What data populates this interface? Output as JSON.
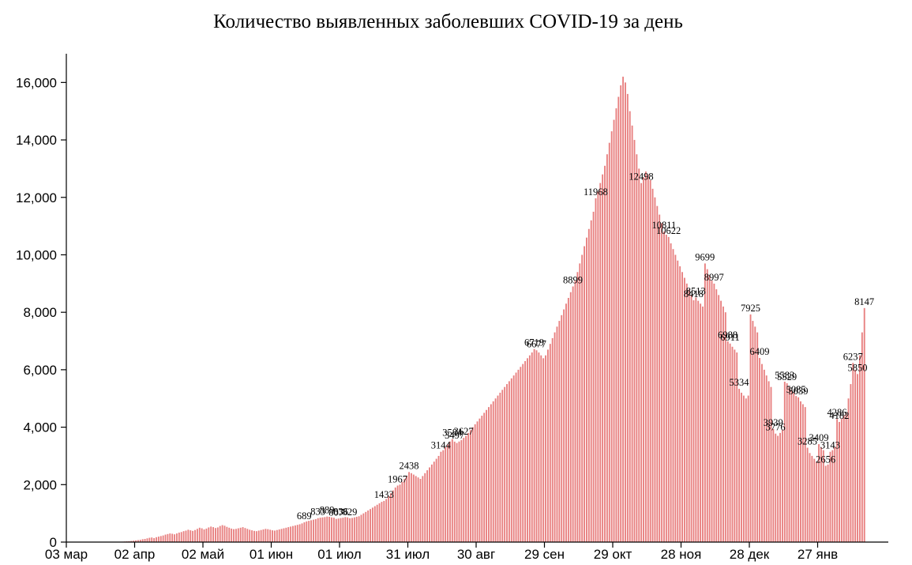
{
  "chart_data": {
    "type": "bar",
    "title": "Количество выявленных заболевших COVID-19 за день",
    "xlabel": "",
    "ylabel": "",
    "ylim": [
      0,
      17000
    ],
    "yticks": [
      0,
      2000,
      4000,
      6000,
      8000,
      10000,
      12000,
      14000,
      16000
    ],
    "ytick_labels": [
      "0",
      "2,000",
      "4,000",
      "6,000",
      "8,000",
      "10,000",
      "12,000",
      "14,000",
      "16,000"
    ],
    "x_start": "2020-03-03",
    "x_end": "2021-02-26",
    "xticks": [
      {
        "date": "2020-03-03",
        "label": "03 мар"
      },
      {
        "date": "2020-04-02",
        "label": "02 апр"
      },
      {
        "date": "2020-05-02",
        "label": "02 май"
      },
      {
        "date": "2020-06-01",
        "label": "01 июн"
      },
      {
        "date": "2020-07-01",
        "label": "01 июл"
      },
      {
        "date": "2020-07-31",
        "label": "31 июл"
      },
      {
        "date": "2020-08-30",
        "label": "30 авг"
      },
      {
        "date": "2020-09-29",
        "label": "29 сен"
      },
      {
        "date": "2020-10-29",
        "label": "29 окт"
      },
      {
        "date": "2020-11-28",
        "label": "28 ноя"
      },
      {
        "date": "2020-12-28",
        "label": "28 дек"
      },
      {
        "date": "2021-01-27",
        "label": "27 янв"
      }
    ],
    "bar_color": "#e88080",
    "series": [
      {
        "values": [
          0,
          0,
          0,
          0,
          0,
          0,
          0,
          0,
          0,
          0,
          0,
          0,
          0,
          0,
          0,
          0,
          0,
          0,
          0,
          0,
          3,
          5,
          8,
          10,
          15,
          20,
          25,
          30,
          40,
          50,
          60,
          70,
          80,
          100,
          110,
          130,
          150,
          160,
          140,
          170,
          190,
          210,
          230,
          260,
          280,
          300,
          290,
          270,
          300,
          330,
          350,
          380,
          400,
          430,
          410,
          390,
          420,
          460,
          500,
          480,
          440,
          470,
          510,
          540,
          520,
          490,
          510,
          560,
          590,
          570,
          530,
          500,
          470,
          450,
          460,
          480,
          500,
          520,
          490,
          460,
          430,
          410,
          390,
          380,
          400,
          420,
          440,
          460,
          450,
          430,
          410,
          400,
          420,
          440,
          460,
          480,
          500,
          520,
          540,
          560,
          580,
          600,
          620,
          650,
          689,
          720,
          740,
          760,
          780,
          800,
          833,
          850,
          860,
          870,
          889,
          880,
          860,
          850,
          807,
          820,
          836,
          850,
          870,
          860,
          829,
          840,
          860,
          880,
          900,
          950,
          1000,
          1050,
          1100,
          1150,
          1200,
          1250,
          1300,
          1350,
          1400,
          1433,
          1500,
          1600,
          1700,
          1800,
          1900,
          1967,
          2000,
          2100,
          2200,
          2300,
          2438,
          2400,
          2350,
          2300,
          2250,
          2200,
          2300,
          2400,
          2500,
          2600,
          2700,
          2800,
          2900,
          3000,
          3144,
          3200,
          3300,
          3400,
          3500,
          3584,
          3497,
          3450,
          3500,
          3550,
          3627,
          3700,
          3800,
          3900,
          4000,
          4100,
          4200,
          4300,
          4400,
          4500,
          4600,
          4700,
          4800,
          4900,
          5000,
          5100,
          5200,
          5300,
          5400,
          5500,
          5600,
          5700,
          5800,
          5900,
          6000,
          6100,
          6200,
          6300,
          6400,
          6500,
          6600,
          6719,
          6677,
          6600,
          6500,
          6400,
          6500,
          6700,
          6900,
          7100,
          7300,
          7500,
          7700,
          7900,
          8100,
          8300,
          8500,
          8700,
          8899,
          9100,
          9400,
          9700,
          10000,
          10300,
          10600,
          10900,
          11200,
          11500,
          11968,
          12200,
          12500,
          12800,
          13100,
          13500,
          13900,
          14300,
          14700,
          15100,
          15500,
          15900,
          16200,
          16000,
          15600,
          15000,
          14500,
          14000,
          13500,
          13000,
          12498,
          12700,
          12900,
          12800,
          12600,
          12300,
          12000,
          11700,
          11400,
          11100,
          10811,
          10700,
          10622,
          10400,
          10200,
          10000,
          9800,
          9600,
          9400,
          9200,
          9000,
          8800,
          8600,
          8418,
          8513,
          8400,
          8300,
          8200,
          9699,
          9500,
          9300,
          9100,
          8997,
          8800,
          8600,
          8400,
          8200,
          8000,
          6988,
          6911,
          6800,
          6700,
          6600,
          5334,
          5200,
          5100,
          5000,
          5100,
          7925,
          7700,
          7500,
          7300,
          6409,
          6200,
          6000,
          5800,
          5600,
          5400,
          3939,
          3776,
          3700,
          3800,
          3900,
          5583,
          5529,
          5400,
          5300,
          5200,
          5085,
          5039,
          4900,
          4800,
          4700,
          3285,
          3100,
          3000,
          2900,
          2800,
          3409,
          3300,
          3200,
          2656,
          2700,
          3143,
          3200,
          3300,
          4286,
          4182,
          4300,
          4400,
          4500,
          5000,
          5500,
          6237,
          6000,
          5850,
          6500,
          7300,
          8147
        ]
      }
    ],
    "data_labels": [
      {
        "text": "689",
        "index": 104
      },
      {
        "text": "833",
        "index": 110
      },
      {
        "text": "889",
        "index": 114
      },
      {
        "text": "807",
        "index": 118
      },
      {
        "text": "836",
        "index": 120
      },
      {
        "text": "829",
        "index": 124
      },
      {
        "text": "1433",
        "index": 139
      },
      {
        "text": "1967",
        "index": 145
      },
      {
        "text": "2438",
        "index": 150
      },
      {
        "text": "3144",
        "index": 164
      },
      {
        "text": "3584",
        "index": 169
      },
      {
        "text": "3497",
        "index": 170
      },
      {
        "text": "3627",
        "index": 174
      },
      {
        "text": "6719",
        "index": 205
      },
      {
        "text": "6677",
        "index": 206
      },
      {
        "text": "8899",
        "index": 222
      },
      {
        "text": "11968",
        "index": 232
      },
      {
        "text": "12498",
        "index": 252
      },
      {
        "text": "10811",
        "index": 262
      },
      {
        "text": "10622",
        "index": 264
      },
      {
        "text": "8418",
        "index": 275
      },
      {
        "text": "8513",
        "index": 276
      },
      {
        "text": "9699",
        "index": 280
      },
      {
        "text": "8997",
        "index": 284
      },
      {
        "text": "6988",
        "index": 290
      },
      {
        "text": "6911",
        "index": 291
      },
      {
        "text": "5334",
        "index": 295
      },
      {
        "text": "7925",
        "index": 300
      },
      {
        "text": "6409",
        "index": 304
      },
      {
        "text": "3939",
        "index": 310
      },
      {
        "text": "3776",
        "index": 311
      },
      {
        "text": "5583",
        "index": 315
      },
      {
        "text": "5529",
        "index": 316
      },
      {
        "text": "5085",
        "index": 320
      },
      {
        "text": "5039",
        "index": 321
      },
      {
        "text": "3285",
        "index": 325
      },
      {
        "text": "3409",
        "index": 330
      },
      {
        "text": "2656",
        "index": 333
      },
      {
        "text": "3143",
        "index": 335
      },
      {
        "text": "4286",
        "index": 338
      },
      {
        "text": "4182",
        "index": 339
      },
      {
        "text": "6237",
        "index": 345
      },
      {
        "text": "5850",
        "index": 347
      },
      {
        "text": "8147",
        "index": 350
      }
    ]
  }
}
